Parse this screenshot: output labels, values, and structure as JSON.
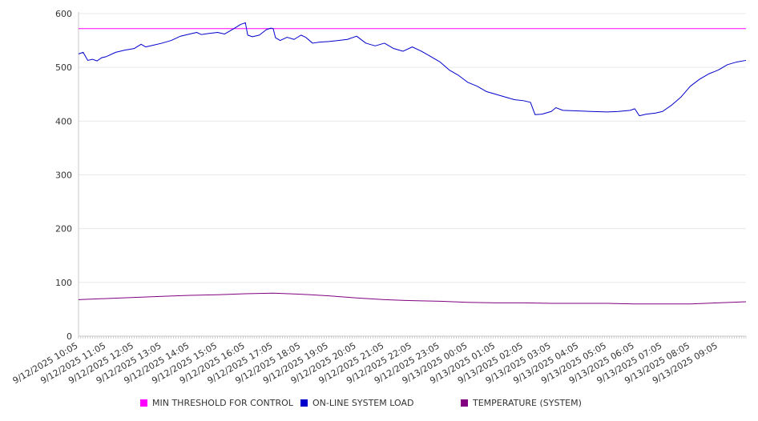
{
  "chart_data": {
    "type": "line",
    "title": "",
    "xlabel": "",
    "ylabel": "",
    "ylim": [
      0,
      600
    ],
    "yticks": [
      0,
      100,
      200,
      300,
      400,
      500,
      600
    ],
    "grid": true,
    "legend_position": "bottom",
    "x_range": [
      "9/12/2025 10:05",
      "9/13/2025 10:05"
    ],
    "x_tick_labels": [
      "9/12/2025 10:05",
      "9/12/2025 11:05",
      "9/12/2025 12:05",
      "9/12/2025 13:05",
      "9/12/2025 14:05",
      "9/12/2025 15:05",
      "9/12/2025 16:05",
      "9/12/2025 17:05",
      "9/12/2025 18:05",
      "9/12/2025 19:05",
      "9/12/2025 20:05",
      "9/12/2025 21:05",
      "9/12/2025 22:05",
      "9/12/2025 23:05",
      "9/13/2025 00:05",
      "9/13/2025 01:05",
      "9/13/2025 02:05",
      "9/13/2025 03:05",
      "9/13/2025 04:05",
      "9/13/2025 05:05",
      "9/13/2025 06:05",
      "9/13/2025 07:05",
      "9/13/2025 08:05",
      "9/13/2025 09:05"
    ],
    "series": [
      {
        "name": "MIN THRESHOLD FOR CONTROL",
        "color": "#ff00ff",
        "points": [
          [
            "9/12/2025 10:05",
            572
          ],
          [
            "9/13/2025 10:05",
            572
          ]
        ]
      },
      {
        "name": "ON-LINE SYSTEM LOAD",
        "color": "#0000cc",
        "points": [
          [
            "9/12/2025 10:05",
            525
          ],
          [
            "9/12/2025 10:15",
            528
          ],
          [
            "9/12/2025 10:25",
            513
          ],
          [
            "9/12/2025 10:35",
            515
          ],
          [
            "9/12/2025 10:45",
            512
          ],
          [
            "9/12/2025 10:55",
            518
          ],
          [
            "9/12/2025 11:05",
            520
          ],
          [
            "9/12/2025 11:25",
            528
          ],
          [
            "9/12/2025 11:45",
            532
          ],
          [
            "9/12/2025 12:05",
            535
          ],
          [
            "9/12/2025 12:20",
            543
          ],
          [
            "9/12/2025 12:30",
            538
          ],
          [
            "9/12/2025 12:45",
            541
          ],
          [
            "9/12/2025 13:05",
            545
          ],
          [
            "9/12/2025 13:25",
            550
          ],
          [
            "9/12/2025 13:45",
            558
          ],
          [
            "9/12/2025 14:05",
            562
          ],
          [
            "9/12/2025 14:20",
            565
          ],
          [
            "9/12/2025 14:30",
            561
          ],
          [
            "9/12/2025 14:45",
            563
          ],
          [
            "9/12/2025 15:05",
            565
          ],
          [
            "9/12/2025 15:20",
            562
          ],
          [
            "9/12/2025 15:40",
            572
          ],
          [
            "9/12/2025 15:55",
            580
          ],
          [
            "9/12/2025 16:05",
            583
          ],
          [
            "9/12/2025 16:10",
            560
          ],
          [
            "9/12/2025 16:20",
            557
          ],
          [
            "9/12/2025 16:35",
            560
          ],
          [
            "9/12/2025 16:50",
            570
          ],
          [
            "9/12/2025 17:00",
            573
          ],
          [
            "9/12/2025 17:05",
            572
          ],
          [
            "9/12/2025 17:10",
            555
          ],
          [
            "9/12/2025 17:20",
            550
          ],
          [
            "9/12/2025 17:35",
            556
          ],
          [
            "9/12/2025 17:50",
            552
          ],
          [
            "9/12/2025 18:05",
            560
          ],
          [
            "9/12/2025 18:15",
            556
          ],
          [
            "9/12/2025 18:30",
            545
          ],
          [
            "9/12/2025 18:45",
            547
          ],
          [
            "9/12/2025 19:05",
            548
          ],
          [
            "9/12/2025 19:25",
            550
          ],
          [
            "9/12/2025 19:45",
            552
          ],
          [
            "9/12/2025 20:05",
            558
          ],
          [
            "9/12/2025 20:25",
            545
          ],
          [
            "9/12/2025 20:45",
            540
          ],
          [
            "9/12/2025 21:05",
            545
          ],
          [
            "9/12/2025 21:25",
            535
          ],
          [
            "9/12/2025 21:45",
            530
          ],
          [
            "9/12/2025 22:05",
            538
          ],
          [
            "9/12/2025 22:25",
            530
          ],
          [
            "9/12/2025 22:45",
            520
          ],
          [
            "9/12/2025 23:05",
            510
          ],
          [
            "9/12/2025 23:25",
            495
          ],
          [
            "9/12/2025 23:45",
            485
          ],
          [
            "9/13/2025 00:05",
            472
          ],
          [
            "9/13/2025 00:25",
            465
          ],
          [
            "9/13/2025 00:45",
            455
          ],
          [
            "9/13/2025 01:05",
            450
          ],
          [
            "9/13/2025 01:25",
            445
          ],
          [
            "9/13/2025 01:45",
            440
          ],
          [
            "9/13/2025 02:05",
            438
          ],
          [
            "9/13/2025 02:20",
            435
          ],
          [
            "9/13/2025 02:30",
            412
          ],
          [
            "9/13/2025 02:45",
            413
          ],
          [
            "9/13/2025 03:05",
            418
          ],
          [
            "9/13/2025 03:15",
            425
          ],
          [
            "9/13/2025 03:30",
            420
          ],
          [
            "9/13/2025 04:05",
            419
          ],
          [
            "9/13/2025 04:30",
            418
          ],
          [
            "9/13/2025 05:05",
            417
          ],
          [
            "9/13/2025 05:30",
            418
          ],
          [
            "9/13/2025 05:55",
            420
          ],
          [
            "9/13/2025 06:05",
            423
          ],
          [
            "9/13/2025 06:15",
            410
          ],
          [
            "9/13/2025 06:30",
            413
          ],
          [
            "9/13/2025 06:50",
            415
          ],
          [
            "9/13/2025 07:05",
            418
          ],
          [
            "9/13/2025 07:25",
            430
          ],
          [
            "9/13/2025 07:45",
            445
          ],
          [
            "9/13/2025 08:05",
            465
          ],
          [
            "9/13/2025 08:25",
            478
          ],
          [
            "9/13/2025 08:45",
            488
          ],
          [
            "9/13/2025 09:05",
            495
          ],
          [
            "9/13/2025 09:25",
            505
          ],
          [
            "9/13/2025 09:45",
            510
          ],
          [
            "9/13/2025 10:05",
            513
          ]
        ]
      },
      {
        "name": "TEMPERATURE (SYSTEM)",
        "color": "#800080",
        "points": [
          [
            "9/12/2025 10:05",
            68
          ],
          [
            "9/12/2025 11:05",
            70
          ],
          [
            "9/12/2025 12:05",
            72
          ],
          [
            "9/12/2025 13:05",
            74
          ],
          [
            "9/12/2025 14:05",
            76
          ],
          [
            "9/12/2025 15:05",
            77
          ],
          [
            "9/12/2025 16:05",
            79
          ],
          [
            "9/12/2025 17:05",
            80
          ],
          [
            "9/12/2025 18:05",
            78
          ],
          [
            "9/12/2025 19:05",
            75
          ],
          [
            "9/12/2025 20:05",
            71
          ],
          [
            "9/12/2025 21:05",
            68
          ],
          [
            "9/12/2025 22:05",
            66
          ],
          [
            "9/12/2025 23:05",
            65
          ],
          [
            "9/13/2025 00:05",
            63
          ],
          [
            "9/13/2025 01:05",
            62
          ],
          [
            "9/13/2025 02:05",
            62
          ],
          [
            "9/13/2025 03:05",
            61
          ],
          [
            "9/13/2025 04:05",
            61
          ],
          [
            "9/13/2025 05:05",
            61
          ],
          [
            "9/13/2025 06:05",
            60
          ],
          [
            "9/13/2025 07:05",
            60
          ],
          [
            "9/13/2025 08:05",
            60
          ],
          [
            "9/13/2025 09:05",
            62
          ],
          [
            "9/13/2025 10:05",
            64
          ]
        ]
      }
    ]
  }
}
